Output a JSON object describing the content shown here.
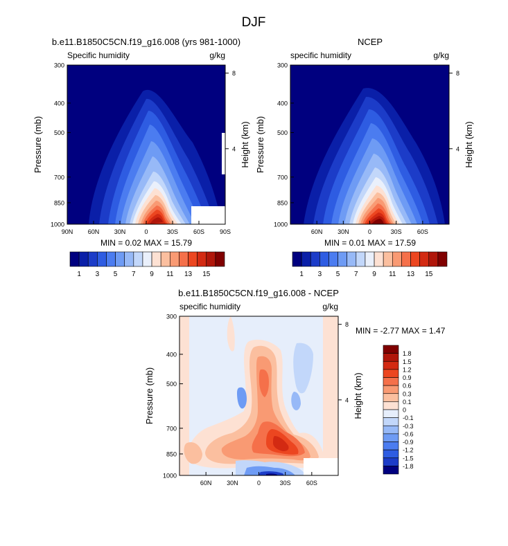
{
  "figure": {
    "title": "DJF"
  },
  "chart_data": [
    {
      "type": "heatmap",
      "title": "b.e11.B1850C5CN.f19_g16.008 (yrs 981-1000)",
      "variable": "Specific humidity",
      "units": "g/kg",
      "ylabel": "Pressure (mb)",
      "ylabel_right": "Height (km)",
      "x_ticks": [
        "90N",
        "60N",
        "30N",
        "0",
        "30S",
        "60S",
        "90S"
      ],
      "xlim": [
        90,
        -90
      ],
      "y_ticks": [
        300,
        400,
        500,
        700,
        850,
        1000
      ],
      "y_scale": "log",
      "height_ticks": [
        8,
        4
      ],
      "stats": "MIN =   0.02  MAX =  15.79",
      "min": 0.02,
      "max": 15.79,
      "has_missing_box": true
    },
    {
      "type": "heatmap",
      "title": "NCEP",
      "variable": "specific humidity",
      "units": "g/kg",
      "ylabel": "Pressure (mb)",
      "ylabel_right": "Height (km)",
      "x_ticks": [
        "60N",
        "30N",
        "0",
        "30S",
        "60S"
      ],
      "xlim": [
        90,
        -90
      ],
      "y_ticks": [
        300,
        400,
        500,
        700,
        850,
        1000
      ],
      "y_scale": "log",
      "height_ticks": [
        8,
        4
      ],
      "stats": "MIN =   0.01  MAX =  17.59",
      "min": 0.01,
      "max": 17.59,
      "has_missing_box": false
    },
    {
      "type": "heatmap",
      "title": "b.e11.B1850C5CN.f19_g16.008 - NCEP",
      "variable": "specific humidity",
      "units": "g/kg",
      "ylabel": "Pressure (mb)",
      "ylabel_right": "Height (km)",
      "x_ticks": [
        "60N",
        "30N",
        "0",
        "30S",
        "60S"
      ],
      "xlim": [
        90,
        -90
      ],
      "y_ticks": [
        300,
        400,
        500,
        700,
        850,
        1000
      ],
      "y_scale": "log",
      "height_ticks": [
        8,
        4
      ],
      "stats": "MIN =  -2.77  MAX =   1.47",
      "min": -2.77,
      "max": 1.47
    }
  ],
  "colorbar_abs": {
    "labels": [
      "1",
      "3",
      "5",
      "7",
      "9",
      "11",
      "13",
      "15"
    ],
    "colors": [
      "#00007f",
      "#0a1fa8",
      "#1c3cc8",
      "#2e5ce2",
      "#4b7cf0",
      "#6e9bf4",
      "#97b9f7",
      "#c2d7fa",
      "#eaf0fb",
      "#fde1d3",
      "#fbbf9f",
      "#f99a73",
      "#f5704a",
      "#ec4620",
      "#d32a12",
      "#b0160a",
      "#800000"
    ]
  },
  "colorbar_diff": {
    "labels": [
      "1.8",
      "1.5",
      "1.2",
      "0.9",
      "0.6",
      "0.3",
      "0.1",
      "0",
      "-0.1",
      "-0.3",
      "-0.6",
      "-0.9",
      "-1.2",
      "-1.5",
      "-1.8"
    ],
    "colors": [
      "#800000",
      "#b0160a",
      "#d32a12",
      "#ec4620",
      "#f5704a",
      "#f99a73",
      "#fbbf9f",
      "#fde1d3",
      "#e6eefb",
      "#c2d7fa",
      "#97b9f7",
      "#6e9bf4",
      "#4b7cf0",
      "#2e5ce2",
      "#1c3cc8",
      "#00007f"
    ]
  }
}
